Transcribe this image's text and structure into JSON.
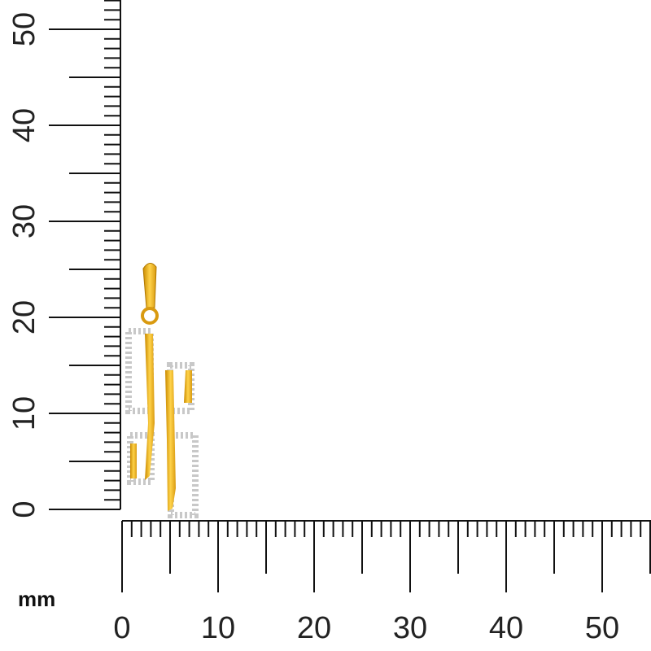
{
  "unit_label": "mm",
  "vertical_ruler": {
    "labels": [
      0,
      10,
      20,
      30,
      40,
      50
    ]
  },
  "horizontal_ruler": {
    "labels": [
      0,
      10,
      20,
      30,
      40,
      50
    ]
  }
}
